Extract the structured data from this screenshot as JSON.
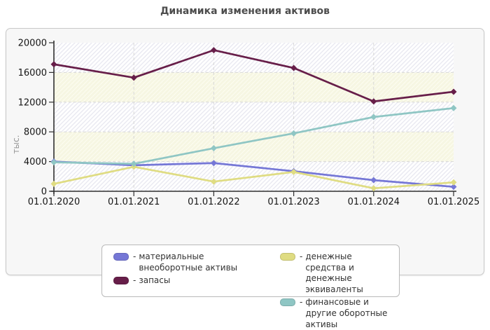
{
  "ui": {
    "legend_dash": "-"
  },
  "chart_data": {
    "type": "line",
    "title": "Динамика изменения активов",
    "xlabel": "",
    "ylabel": "тыс.",
    "categories": [
      "01.01.2020",
      "01.01.2021",
      "01.01.2022",
      "01.01.2023",
      "01.01.2024",
      "01.01.2025"
    ],
    "ylim": [
      0,
      20000
    ],
    "yticks": [
      0,
      4000,
      8000,
      12000,
      16000,
      20000
    ],
    "grid": true,
    "legend_position": "bottom",
    "series": [
      {
        "name": "материальные внеоборотные активы",
        "color": "#7577d6",
        "values": [
          4000,
          3500,
          3800,
          2700,
          1500,
          600
        ]
      },
      {
        "name": "запасы",
        "color": "#671e49",
        "values": [
          17100,
          15300,
          19000,
          16600,
          12100,
          13400
        ]
      },
      {
        "name": "денежные средства и денежные эквиваленты",
        "color": "#dfdc82",
        "values": [
          1000,
          3300,
          1300,
          2600,
          400,
          1200
        ]
      },
      {
        "name": "финансовые и другие оборотные активы",
        "color": "#8fc6c4",
        "values": [
          3900,
          3700,
          5800,
          7800,
          10000,
          11200
        ]
      }
    ]
  }
}
